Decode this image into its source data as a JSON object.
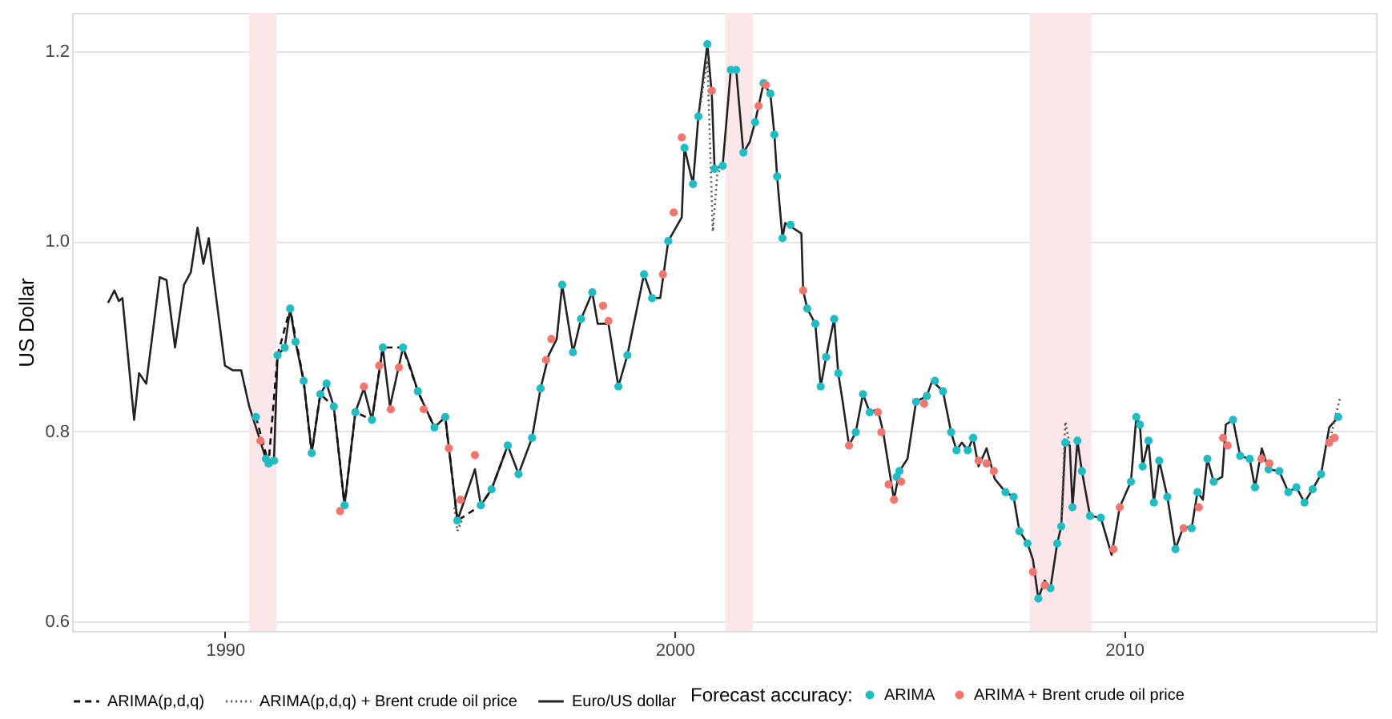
{
  "chart_data": {
    "type": "line",
    "ylabel": "US Dollar",
    "legend_title": "Forecast accuracy:",
    "legend": "bottom",
    "grid": "y",
    "xlim": [
      1986.6,
      2015.6
    ],
    "xticks": [
      1990,
      2000,
      2010
    ],
    "ylim": [
      0.59,
      1.24
    ],
    "yticks": [
      0.6,
      0.8,
      {
        "value": 1.0,
        "label": "1.0"
      },
      1.2
    ],
    "bands": [
      {
        "axis": "x",
        "from": 1990.54,
        "to": 1991.15,
        "color": "#fbe6e9"
      },
      {
        "axis": "x",
        "from": 2001.13,
        "to": 2001.74,
        "color": "#fbe6e9"
      },
      {
        "axis": "x",
        "from": 2007.9,
        "to": 2009.27,
        "color": "#fbe6e9"
      }
    ],
    "series": [
      {
        "name": "ARIMA",
        "type": "scatter",
        "color": "#1fbcc4",
        "marker": "circle",
        "x": [
          1990.69,
          1990.91,
          1990.97,
          1991.09,
          1991.17,
          1991.33,
          1991.45,
          1991.57,
          1991.75,
          1991.93,
          1992.12,
          1992.26,
          1992.42,
          1992.66,
          1992.9,
          1993.27,
          1993.51,
          1993.96,
          1994.29,
          1994.66,
          1994.9,
          1995.17,
          1995.69,
          1995.93,
          1996.29,
          1996.53,
          1996.83,
          1997.02,
          1997.5,
          1997.74,
          1997.92,
          1998.17,
          1998.75,
          1998.95,
          1999.32,
          1999.5,
          1999.86,
          2000.22,
          2000.41,
          2000.53,
          2000.73,
          2000.89,
          2001.07,
          2001.25,
          2001.37,
          2001.53,
          2001.79,
          2001.98,
          2002.13,
          2002.22,
          2002.28,
          2002.4,
          2002.58,
          2002.95,
          2003.13,
          2003.25,
          2003.37,
          2003.55,
          2003.64,
          2004.03,
          2004.19,
          2004.34,
          2004.94,
          2005.0,
          2005.37,
          2005.61,
          2005.79,
          2005.97,
          2006.15,
          2006.27,
          2006.52,
          2006.64,
          2007.36,
          2007.54,
          2007.67,
          2007.85,
          2008.09,
          2008.36,
          2008.51,
          2008.6,
          2008.69,
          2008.85,
          2008.96,
          2009.06,
          2009.24,
          2009.48,
          2010.15,
          2010.27,
          2010.35,
          2010.41,
          2010.54,
          2010.66,
          2010.78,
          2010.96,
          2011.14,
          2011.5,
          2011.63,
          2011.85,
          2011.99,
          2012.42,
          2012.58,
          2012.79,
          2012.91,
          2013.21,
          2013.45,
          2013.65,
          2013.83,
          2014.01,
          2014.19,
          2014.38,
          2014.76
        ],
        "values": [
          0.815,
          0.771,
          0.766,
          0.769,
          0.88,
          0.888,
          0.929,
          0.894,
          0.853,
          0.777,
          0.839,
          0.85,
          0.826,
          0.722,
          0.82,
          0.812,
          0.888,
          0.888,
          0.842,
          0.804,
          0.815,
          0.706,
          0.722,
          0.739,
          0.785,
          0.755,
          0.793,
          0.845,
          0.954,
          0.883,
          0.918,
          0.946,
          0.847,
          0.88,
          0.965,
          0.94,
          1.0,
          1.098,
          1.06,
          1.131,
          1.207,
          1.076,
          1.079,
          1.18,
          1.18,
          1.093,
          1.125,
          1.166,
          1.155,
          1.112,
          1.068,
          1.003,
          1.017,
          0.929,
          0.913,
          0.847,
          0.878,
          0.918,
          0.861,
          0.799,
          0.839,
          0.82,
          0.752,
          0.758,
          0.831,
          0.837,
          0.853,
          0.842,
          0.799,
          0.78,
          0.78,
          0.793,
          0.736,
          0.731,
          0.695,
          0.682,
          0.624,
          0.635,
          0.682,
          0.7,
          0.788,
          0.72,
          0.79,
          0.758,
          0.711,
          0.709,
          0.747,
          0.815,
          0.807,
          0.763,
          0.79,
          0.725,
          0.769,
          0.731,
          0.676,
          0.698,
          0.736,
          0.771,
          0.747,
          0.812,
          0.774,
          0.771,
          0.741,
          0.76,
          0.758,
          0.736,
          0.741,
          0.725,
          0.739,
          0.755,
          0.815
        ]
      },
      {
        "name": "ARIMA + Brent crude oil price",
        "type": "scatter",
        "color": "#f3766e",
        "marker": "circle",
        "x": [
          1990.79,
          1992.56,
          1993.09,
          1993.43,
          1993.69,
          1993.87,
          1994.42,
          1994.98,
          1995.24,
          1995.56,
          1997.14,
          1997.26,
          1998.41,
          1998.53,
          1999.74,
          1999.98,
          2000.16,
          2000.83,
          2001.87,
          2002.03,
          2002.86,
          2003.88,
          2004.52,
          2004.6,
          2004.76,
          2004.88,
          2005.04,
          2005.55,
          2006.76,
          2006.94,
          2007.1,
          2007.97,
          2008.23,
          2009.76,
          2009.9,
          2011.32,
          2011.66,
          2012.2,
          2012.3,
          2013.05,
          2013.23,
          2014.56,
          2014.68
        ],
        "values": [
          0.79,
          0.716,
          0.847,
          0.869,
          0.823,
          0.867,
          0.823,
          0.782,
          0.728,
          0.775,
          0.875,
          0.897,
          0.932,
          0.916,
          0.965,
          1.03,
          1.109,
          1.158,
          1.142,
          1.164,
          0.948,
          0.785,
          0.82,
          0.799,
          0.744,
          0.728,
          0.747,
          0.829,
          0.769,
          0.766,
          0.758,
          0.652,
          0.638,
          0.676,
          0.72,
          0.698,
          0.72,
          0.793,
          0.785,
          0.771,
          0.766,
          0.788,
          0.793
        ]
      },
      {
        "name": "ARIMA(p,d,q)",
        "color": "#111111",
        "line_style": "dashed",
        "x": [
          1990.69,
          1990.97,
          1991.17,
          1991.45,
          1991.75,
          1991.93,
          1992.12,
          1992.42,
          1992.66,
          1992.9,
          1993.27,
          1993.51,
          1993.96,
          1994.29,
          1994.66,
          1994.9,
          1995.17,
          1995.69,
          1995.93,
          1996.29
        ],
        "values": [
          0.815,
          0.766,
          0.88,
          0.929,
          0.853,
          0.777,
          0.839,
          0.826,
          0.722,
          0.82,
          0.812,
          0.888,
          0.888,
          0.842,
          0.804,
          0.815,
          0.706,
          0.722,
          0.739,
          0.785
        ]
      },
      {
        "name": "ARIMA(p,d,q) + Brent crude oil price",
        "color": "#555555",
        "line_style": "dotted",
        "x": [
          1995.1,
          1995.17,
          1995.3,
          1995.4,
          2000.53,
          2000.73,
          2000.85,
          2000.95,
          2001.07,
          2001.2,
          2008.6,
          2008.69,
          2008.79,
          2008.9,
          2014.56,
          2014.8
        ],
        "values": [
          0.72,
          0.695,
          0.71,
          null,
          1.131,
          1.19,
          1.01,
          1.07,
          1.079,
          null,
          0.7,
          0.81,
          0.785,
          null,
          0.788,
          0.835
        ]
      },
      {
        "name": "Euro/US dollar",
        "color": "#222222",
        "line_style": "solid",
        "x": [
          1987.4,
          1987.54,
          1987.64,
          1987.72,
          1987.98,
          1988.09,
          1988.25,
          1988.55,
          1988.7,
          1988.89,
          1989.09,
          1989.24,
          1989.39,
          1989.52,
          1989.64,
          1989.76,
          1990.0,
          1990.18,
          1990.36,
          1990.54,
          1990.73,
          1990.91,
          1991.09,
          1991.17,
          1991.33,
          1991.45,
          1991.57,
          1991.75,
          1991.93,
          1992.12,
          1992.26,
          1992.42,
          1992.66,
          1992.9,
          1993.09,
          1993.27,
          1993.51,
          1993.67,
          1993.96,
          1994.11,
          1994.29,
          1994.66,
          1994.9,
          1995.17,
          1995.56,
          1995.69,
          1995.93,
          1996.29,
          1996.53,
          1996.83,
          1997.02,
          1997.2,
          1997.38,
          1997.5,
          1997.74,
          1997.92,
          1998.17,
          1998.29,
          1998.53,
          1998.75,
          1998.95,
          1999.32,
          1999.5,
          1999.68,
          1999.86,
          2000.16,
          2000.22,
          2000.41,
          2000.53,
          2000.73,
          2000.83,
          2000.89,
          2001.07,
          2001.25,
          2001.37,
          2001.53,
          2001.67,
          2001.79,
          2001.98,
          2002.13,
          2002.22,
          2002.28,
          2002.4,
          2002.46,
          2002.82,
          2002.86,
          2002.95,
          2003.13,
          2003.25,
          2003.37,
          2003.55,
          2003.64,
          2003.73,
          2003.88,
          2004.03,
          2004.19,
          2004.34,
          2004.52,
          2004.64,
          2004.88,
          2005.0,
          2005.18,
          2005.37,
          2005.61,
          2005.73,
          2005.97,
          2006.15,
          2006.27,
          2006.39,
          2006.52,
          2006.64,
          2006.76,
          2006.94,
          2007.12,
          2007.36,
          2007.54,
          2007.67,
          2007.85,
          2007.97,
          2008.09,
          2008.23,
          2008.36,
          2008.51,
          2008.6,
          2008.69,
          2008.79,
          2008.85,
          2008.96,
          2009.06,
          2009.24,
          2009.48,
          2009.72,
          2009.9,
          2010.15,
          2010.27,
          2010.35,
          2010.41,
          2010.54,
          2010.66,
          2010.78,
          2010.96,
          2011.14,
          2011.32,
          2011.5,
          2011.63,
          2011.75,
          2011.85,
          2011.99,
          2012.18,
          2012.26,
          2012.42,
          2012.58,
          2012.79,
          2012.91,
          2013.06,
          2013.21,
          2013.45,
          2013.65,
          2013.83,
          2014.01,
          2014.19,
          2014.38,
          2014.56,
          2014.76
        ],
        "values": [
          0.935,
          0.948,
          0.937,
          0.94,
          0.812,
          0.861,
          0.85,
          0.962,
          0.959,
          0.888,
          0.954,
          0.967,
          1.014,
          0.976,
          1.003,
          0.957,
          0.869,
          0.864,
          0.864,
          0.826,
          0.798,
          0.771,
          0.769,
          0.88,
          0.888,
          0.929,
          0.894,
          0.853,
          0.777,
          0.839,
          0.85,
          0.826,
          0.722,
          0.82,
          0.845,
          0.812,
          0.888,
          0.826,
          0.888,
          0.869,
          0.842,
          0.804,
          0.815,
          0.706,
          0.76,
          0.722,
          0.739,
          0.785,
          0.755,
          0.793,
          0.845,
          0.88,
          0.897,
          0.954,
          0.883,
          0.918,
          0.946,
          0.913,
          0.913,
          0.847,
          0.88,
          0.965,
          0.94,
          0.94,
          1.0,
          1.025,
          1.098,
          1.06,
          1.131,
          1.207,
          1.153,
          1.076,
          1.079,
          1.18,
          1.18,
          1.093,
          1.104,
          1.125,
          1.166,
          1.155,
          1.112,
          1.068,
          1.003,
          1.019,
          1.008,
          0.948,
          0.929,
          0.913,
          0.847,
          0.878,
          0.918,
          0.861,
          0.834,
          0.785,
          0.799,
          0.839,
          0.82,
          0.823,
          0.799,
          0.728,
          0.758,
          0.771,
          0.831,
          0.837,
          0.853,
          0.842,
          0.799,
          0.78,
          0.788,
          0.78,
          0.793,
          0.763,
          0.782,
          0.75,
          0.736,
          0.731,
          0.695,
          0.682,
          0.665,
          0.624,
          0.643,
          0.635,
          0.682,
          0.7,
          0.788,
          0.785,
          0.72,
          0.79,
          0.758,
          0.711,
          0.709,
          0.67,
          0.72,
          0.747,
          0.815,
          0.807,
          0.763,
          0.79,
          0.725,
          0.769,
          0.731,
          0.676,
          0.7,
          0.698,
          0.736,
          0.728,
          0.771,
          0.747,
          0.752,
          0.807,
          0.812,
          0.774,
          0.771,
          0.741,
          0.782,
          0.76,
          0.758,
          0.736,
          0.741,
          0.725,
          0.739,
          0.755,
          0.804,
          0.815
        ]
      }
    ]
  }
}
